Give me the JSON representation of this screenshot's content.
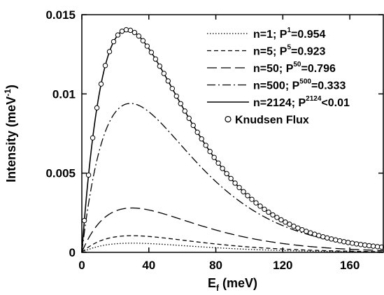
{
  "chart_data": {
    "type": "line",
    "xlabel": {
      "main": "E",
      "sub": "f",
      "rest": " (meV)"
    },
    "ylabel": {
      "main": "Intensity (meV",
      "sup": "-1",
      "rest": ")"
    },
    "xlim": [
      0,
      180
    ],
    "ylim": [
      0,
      0.015
    ],
    "x_ticks": [
      0,
      40,
      80,
      120,
      160
    ],
    "x_tick_labels": [
      "0",
      "40",
      "80",
      "120",
      "160"
    ],
    "y_ticks": [
      0,
      0.005,
      0.01,
      0.015
    ],
    "y_tick_labels": [
      "0",
      "0.005",
      "0.01",
      "0.015"
    ],
    "grid": false,
    "legend_position": "top-right",
    "series": [
      {
        "name": "n=1; P1=0.954",
        "label_main": "n=1; P",
        "label_sup": "1",
        "label_rest": "=0.954",
        "style": "dotted",
        "peak": 0.00058,
        "peak_x": 30
      },
      {
        "name": "n=5; P5=0.923",
        "label_main": "n=5; P",
        "label_sup": "5",
        "label_rest": "=0.923",
        "style": "dashed",
        "peak": 0.00105,
        "peak_x": 30
      },
      {
        "name": "n=50; P50=0.796",
        "label_main": "n=50; P",
        "label_sup": "50",
        "label_rest": "=0.796",
        "style": "longdash",
        "peak": 0.0028,
        "peak_x": 30
      },
      {
        "name": "n=500; P500=0.333",
        "label_main": "n=500; P",
        "label_sup": "500",
        "label_rest": "=0.333",
        "style": "dashdot",
        "peak": 0.0094,
        "peak_x": 29
      },
      {
        "name": "n=2124; P2124<0.01",
        "label_main": "n=2124; P",
        "label_sup": "2124",
        "label_rest": "<0.01",
        "style": "solid",
        "peak": 0.01405,
        "peak_x": 27
      },
      {
        "name": "Knudsen Flux",
        "label_main": "Knudsen Flux",
        "label_sup": "",
        "label_rest": "",
        "style": "circles",
        "peak": 0.01405,
        "peak_x": 27
      }
    ]
  }
}
